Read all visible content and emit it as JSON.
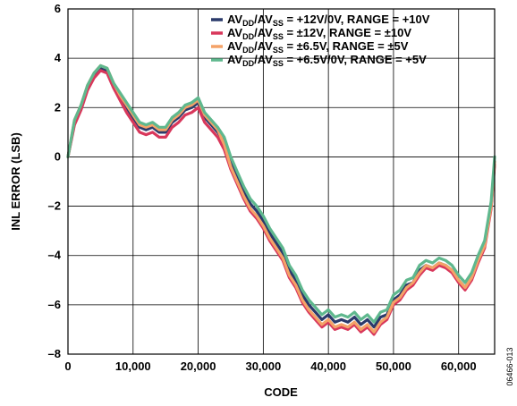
{
  "chart_data": {
    "type": "line",
    "xlabel": "CODE",
    "ylabel": "INL ERROR (LSB)",
    "xlim": [
      0,
      65535
    ],
    "ylim": [
      -8,
      6
    ],
    "x_ticks": [
      0,
      10000,
      20000,
      30000,
      40000,
      50000,
      60000
    ],
    "x_tick_labels": [
      "0",
      "10,000",
      "20,000",
      "30,000",
      "40,000",
      "50,000",
      "60,000"
    ],
    "y_ticks": [
      -8,
      -6,
      -4,
      -2,
      0,
      2,
      4,
      6
    ],
    "y_tick_labels": [
      "–8",
      "–6",
      "–4",
      "–2",
      "0",
      "2",
      "4",
      "6"
    ],
    "grid": true,
    "legend_position": "top-right",
    "figure_id": "06466-013",
    "x": [
      0,
      1000,
      2000,
      3000,
      4000,
      5000,
      6000,
      7000,
      8000,
      9000,
      10000,
      11000,
      12000,
      13000,
      14000,
      15000,
      16000,
      17000,
      18000,
      19000,
      20000,
      21000,
      22000,
      23000,
      24000,
      25000,
      26000,
      27000,
      28000,
      29000,
      30000,
      31000,
      32000,
      33000,
      34000,
      35000,
      36000,
      37000,
      38000,
      39000,
      40000,
      41000,
      42000,
      43000,
      44000,
      45000,
      46000,
      47000,
      48000,
      49000,
      50000,
      51000,
      52000,
      53000,
      54000,
      55000,
      56000,
      57000,
      58000,
      59000,
      60000,
      61000,
      62000,
      63000,
      64000,
      65000,
      65535
    ],
    "series": [
      {
        "name_parts": [
          [
            "AV",
            ""
          ],
          [
            "DD",
            "sub"
          ],
          [
            "/AV",
            ""
          ],
          [
            "SS",
            "sub"
          ],
          [
            " = +12V/0V, RANGE = +10V",
            ""
          ]
        ],
        "color": "#2b3a6b",
        "values": [
          0,
          1.4,
          2.0,
          2.8,
          3.3,
          3.6,
          3.5,
          2.9,
          2.4,
          2.0,
          1.6,
          1.2,
          1.1,
          1.2,
          1.0,
          1.0,
          1.4,
          1.6,
          1.9,
          2.0,
          2.2,
          1.6,
          1.3,
          1.0,
          0.6,
          -0.2,
          -0.8,
          -1.4,
          -1.9,
          -2.2,
          -2.6,
          -3.1,
          -3.5,
          -3.9,
          -4.6,
          -5.0,
          -5.6,
          -6.0,
          -6.3,
          -6.6,
          -6.4,
          -6.7,
          -6.6,
          -6.7,
          -6.5,
          -6.8,
          -6.6,
          -6.9,
          -6.5,
          -6.4,
          -5.8,
          -5.6,
          -5.2,
          -5.1,
          -4.6,
          -4.4,
          -4.5,
          -4.3,
          -4.4,
          -4.6,
          -5.0,
          -5.3,
          -4.9,
          -4.2,
          -3.6,
          -2.0,
          -0.2
        ]
      },
      {
        "name_parts": [
          [
            "AV",
            ""
          ],
          [
            "DD",
            "sub"
          ],
          [
            "/AV",
            ""
          ],
          [
            "SS",
            "sub"
          ],
          [
            " = ±12V, RANGE = ±10V",
            ""
          ]
        ],
        "color": "#d8375b",
        "values": [
          0,
          1.3,
          1.9,
          2.7,
          3.2,
          3.5,
          3.4,
          2.8,
          2.3,
          1.8,
          1.4,
          1.0,
          0.9,
          1.0,
          0.8,
          0.8,
          1.2,
          1.4,
          1.7,
          1.8,
          2.0,
          1.4,
          1.1,
          0.8,
          0.3,
          -0.5,
          -1.1,
          -1.7,
          -2.2,
          -2.5,
          -2.9,
          -3.4,
          -3.8,
          -4.2,
          -4.9,
          -5.3,
          -5.9,
          -6.3,
          -6.6,
          -6.9,
          -6.7,
          -7.0,
          -6.9,
          -7.0,
          -6.8,
          -7.1,
          -6.9,
          -7.2,
          -6.8,
          -6.6,
          -6.0,
          -5.8,
          -5.4,
          -5.2,
          -4.8,
          -4.5,
          -4.6,
          -4.4,
          -4.5,
          -4.7,
          -5.1,
          -5.4,
          -5.0,
          -4.3,
          -3.7,
          -2.1,
          -0.3
        ]
      },
      {
        "name_parts": [
          [
            "AV",
            ""
          ],
          [
            "DD",
            "sub"
          ],
          [
            "/AV",
            ""
          ],
          [
            "SS",
            "sub"
          ],
          [
            " = ±6.5V, RANGE = ±5V",
            ""
          ]
        ],
        "color": "#f4a268",
        "values": [
          0,
          1.5,
          2.1,
          2.9,
          3.4,
          3.7,
          3.6,
          3.0,
          2.5,
          2.1,
          1.7,
          1.3,
          1.2,
          1.3,
          1.1,
          1.1,
          1.5,
          1.7,
          2.0,
          2.1,
          2.3,
          1.7,
          1.4,
          1.1,
          0.5,
          -0.4,
          -1.0,
          -1.6,
          -2.1,
          -2.4,
          -2.8,
          -3.3,
          -3.7,
          -4.1,
          -4.8,
          -5.2,
          -5.8,
          -6.2,
          -6.5,
          -6.8,
          -6.6,
          -6.9,
          -6.8,
          -6.9,
          -6.7,
          -7.0,
          -6.8,
          -7.1,
          -6.7,
          -6.5,
          -5.9,
          -5.7,
          -5.3,
          -5.1,
          -4.7,
          -4.4,
          -4.5,
          -4.3,
          -4.4,
          -4.6,
          -5.0,
          -5.3,
          -4.9,
          -4.2,
          -3.6,
          -2.0,
          -0.2
        ]
      },
      {
        "name_parts": [
          [
            "AV",
            ""
          ],
          [
            "DD",
            "sub"
          ],
          [
            "/AV",
            ""
          ],
          [
            "SS",
            "sub"
          ],
          [
            " = +6.5V/0V, RANGE = +5V",
            ""
          ]
        ],
        "color": "#5fb88e",
        "values": [
          0,
          1.5,
          2.1,
          2.9,
          3.4,
          3.7,
          3.6,
          3.0,
          2.6,
          2.2,
          1.8,
          1.4,
          1.3,
          1.4,
          1.2,
          1.2,
          1.6,
          1.8,
          2.1,
          2.2,
          2.4,
          1.8,
          1.5,
          1.2,
          0.8,
          0.0,
          -0.6,
          -1.2,
          -1.7,
          -2.0,
          -2.4,
          -2.9,
          -3.3,
          -3.7,
          -4.4,
          -4.8,
          -5.4,
          -5.8,
          -6.1,
          -6.4,
          -6.2,
          -6.5,
          -6.4,
          -6.5,
          -6.3,
          -6.6,
          -6.4,
          -6.7,
          -6.3,
          -6.2,
          -5.6,
          -5.4,
          -5.0,
          -4.9,
          -4.4,
          -4.2,
          -4.3,
          -4.1,
          -4.2,
          -4.4,
          -4.8,
          -5.1,
          -4.7,
          -4.0,
          -3.4,
          -1.8,
          0.0
        ]
      }
    ]
  }
}
